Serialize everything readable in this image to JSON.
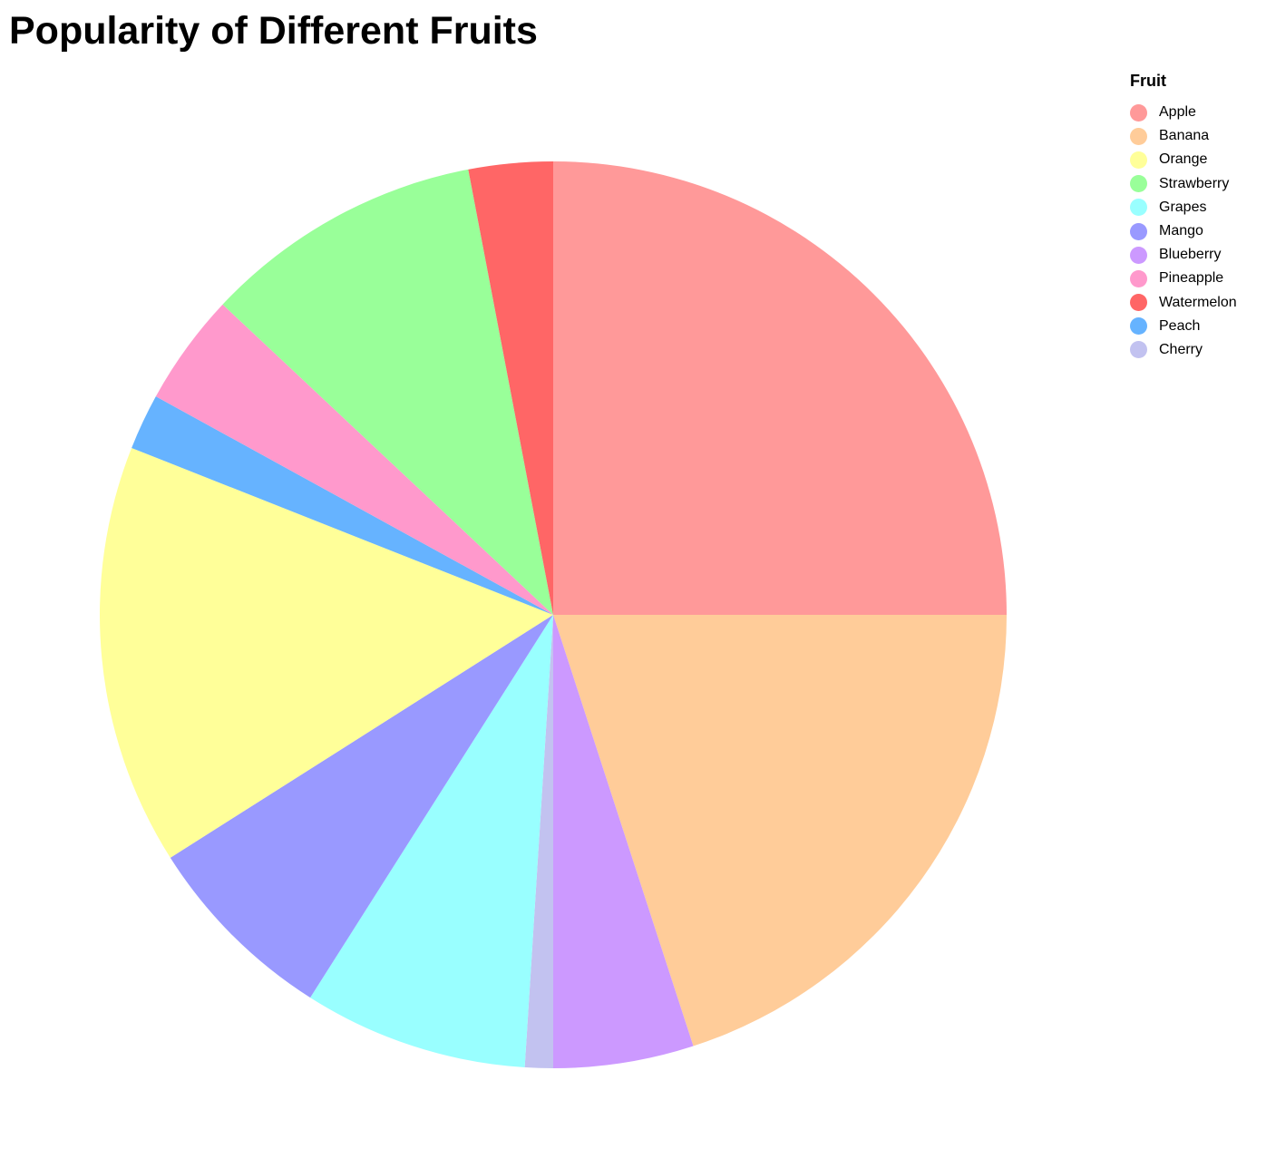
{
  "chart_data": {
    "type": "pie",
    "title": "Popularity of Different Fruits",
    "legend_title": "Fruit",
    "legend_position": "top-right",
    "categories": [
      "Apple",
      "Banana",
      "Orange",
      "Strawberry",
      "Grapes",
      "Mango",
      "Blueberry",
      "Pineapple",
      "Watermelon",
      "Peach",
      "Cherry"
    ],
    "values": [
      25,
      20,
      15,
      10,
      8,
      7,
      5,
      4,
      3,
      2,
      1
    ],
    "colors": [
      "#ff9999",
      "#ffcc99",
      "#ffff99",
      "#99ff99",
      "#99ffff",
      "#9999ff",
      "#cc99ff",
      "#ff99cc",
      "#ff6666",
      "#66b3ff",
      "#c2c2f0"
    ],
    "slice_order": [
      "Apple",
      "Banana",
      "Blueberry",
      "Cherry",
      "Grapes",
      "Mango",
      "Orange",
      "Peach",
      "Pineapple",
      "Strawberry",
      "Watermelon"
    ]
  }
}
